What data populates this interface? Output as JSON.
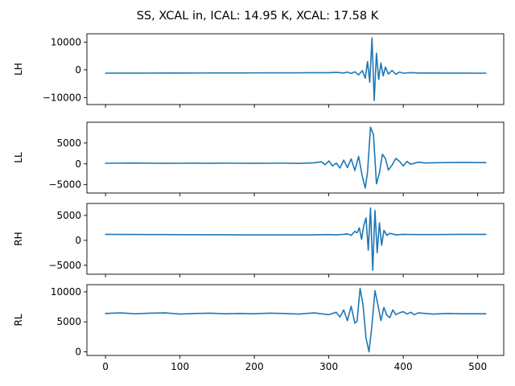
{
  "figure": {
    "title": "SS, XCAL in, ICAL: 14.95 K, XCAL: 17.58 K",
    "line_color": "#1f77b4"
  },
  "chart_data": [
    {
      "type": "line",
      "ylabel": "LH",
      "series": [
        {
          "values_desc": "",
          "x": [
            0,
            20,
            40,
            60,
            80,
            100,
            120,
            140,
            160,
            180,
            200,
            220,
            240,
            260,
            280,
            300,
            310,
            320,
            325,
            330,
            335,
            340,
            345,
            349,
            352,
            355,
            358,
            361,
            364,
            367,
            370,
            373,
            376,
            380,
            385,
            390,
            395,
            400,
            410,
            420,
            440,
            460,
            480,
            500,
            511
          ],
          "y": [
            -1200,
            -1180,
            -1170,
            -1160,
            -1150,
            -1140,
            -1130,
            -1120,
            -1110,
            -1100,
            -1090,
            -1080,
            -1070,
            -1060,
            -1040,
            -1030,
            -900,
            -1150,
            -800,
            -1300,
            -700,
            -1800,
            -300,
            -3000,
            3000,
            -4500,
            11500,
            -11000,
            6000,
            -3500,
            2500,
            -2200,
            1000,
            -1500,
            -200,
            -1600,
            -800,
            -1200,
            -1000,
            -1150,
            -1150,
            -1180,
            -1190,
            -1200,
            -1200
          ]
        }
      ],
      "xlim": [
        -25,
        535
      ],
      "ylim": [
        -12500,
        13000
      ],
      "yticks": [
        -10000,
        0,
        10000
      ]
    },
    {
      "type": "line",
      "ylabel": "LL",
      "series": [
        {
          "x": [
            0,
            20,
            40,
            60,
            80,
            100,
            120,
            140,
            160,
            180,
            200,
            220,
            240,
            260,
            280,
            290,
            295,
            300,
            305,
            310,
            315,
            320,
            325,
            330,
            335,
            340,
            345,
            349,
            352,
            356,
            360,
            364,
            368,
            372,
            376,
            380,
            385,
            390,
            395,
            400,
            405,
            410,
            420,
            430,
            440,
            460,
            480,
            500,
            511
          ],
          "y": [
            150,
            170,
            200,
            150,
            130,
            150,
            160,
            140,
            170,
            150,
            130,
            150,
            170,
            120,
            250,
            500,
            -200,
            700,
            -500,
            200,
            -1000,
            900,
            -900,
            1200,
            -1600,
            1800,
            -3000,
            -5800,
            -2000,
            8800,
            7000,
            -4800,
            -2200,
            2300,
            1300,
            -1500,
            -300,
            1300,
            600,
            -500,
            600,
            -100,
            400,
            200,
            250,
            300,
            350,
            300,
            300
          ]
        }
      ],
      "xlim": [
        -25,
        535
      ],
      "ylim": [
        -7000,
        10000
      ],
      "yticks": [
        -5000,
        0,
        5000
      ]
    },
    {
      "type": "line",
      "ylabel": "RH",
      "series": [
        {
          "x": [
            0,
            20,
            40,
            60,
            80,
            100,
            120,
            140,
            160,
            180,
            200,
            220,
            240,
            260,
            280,
            300,
            310,
            320,
            325,
            330,
            335,
            338,
            341,
            344,
            347,
            350,
            353,
            356,
            359,
            362,
            365,
            368,
            371,
            374,
            378,
            382,
            390,
            400,
            420,
            440,
            460,
            480,
            500,
            511
          ],
          "y": [
            1200,
            1180,
            1170,
            1160,
            1150,
            1140,
            1130,
            1120,
            1110,
            1100,
            1090,
            1100,
            1100,
            1100,
            1100,
            1150,
            1100,
            1200,
            1300,
            1000,
            1800,
            1500,
            2500,
            200,
            3000,
            4500,
            -2000,
            6500,
            -6000,
            6000,
            -2500,
            3500,
            -1000,
            2000,
            1000,
            1400,
            1100,
            1200,
            1150,
            1150,
            1180,
            1190,
            1200,
            1200
          ]
        }
      ],
      "xlim": [
        -25,
        535
      ],
      "ylim": [
        -6800,
        7400
      ],
      "yticks": [
        -5000,
        0,
        5000
      ]
    },
    {
      "type": "line",
      "ylabel": "RL",
      "series": [
        {
          "x": [
            0,
            20,
            40,
            60,
            80,
            100,
            120,
            140,
            160,
            180,
            200,
            220,
            240,
            260,
            280,
            300,
            310,
            315,
            320,
            325,
            330,
            335,
            338,
            342,
            346,
            350,
            354,
            358,
            362,
            366,
            370,
            374,
            378,
            382,
            386,
            390,
            395,
            400,
            405,
            410,
            415,
            420,
            430,
            440,
            460,
            480,
            500,
            511
          ],
          "y": [
            6400,
            6500,
            6350,
            6450,
            6500,
            6300,
            6400,
            6450,
            6350,
            6400,
            6350,
            6450,
            6400,
            6300,
            6500,
            6200,
            6600,
            5800,
            7000,
            5200,
            7600,
            4800,
            5100,
            10600,
            7800,
            2300,
            0,
            4500,
            10200,
            7800,
            5200,
            7400,
            6100,
            5700,
            7000,
            6200,
            6500,
            6700,
            6300,
            6600,
            6200,
            6500,
            6400,
            6300,
            6400,
            6350,
            6350,
            6350
          ]
        }
      ],
      "xlim": [
        -25,
        535
      ],
      "ylim": [
        -600,
        11200
      ],
      "yticks": [
        0,
        5000,
        10000
      ]
    }
  ],
  "xaxis": {
    "ticks": [
      0,
      100,
      200,
      300,
      400,
      500
    ],
    "tick_labels": [
      "0",
      "100",
      "200",
      "300",
      "400",
      "500"
    ],
    "labels_on_last_only": true
  },
  "ytick_labels": [
    [
      "−10000",
      "0",
      "10000"
    ],
    [
      "−5000",
      "0",
      "5000"
    ],
    [
      "−5000",
      "0",
      "5000"
    ],
    [
      "0",
      "5000",
      "10000"
    ]
  ]
}
